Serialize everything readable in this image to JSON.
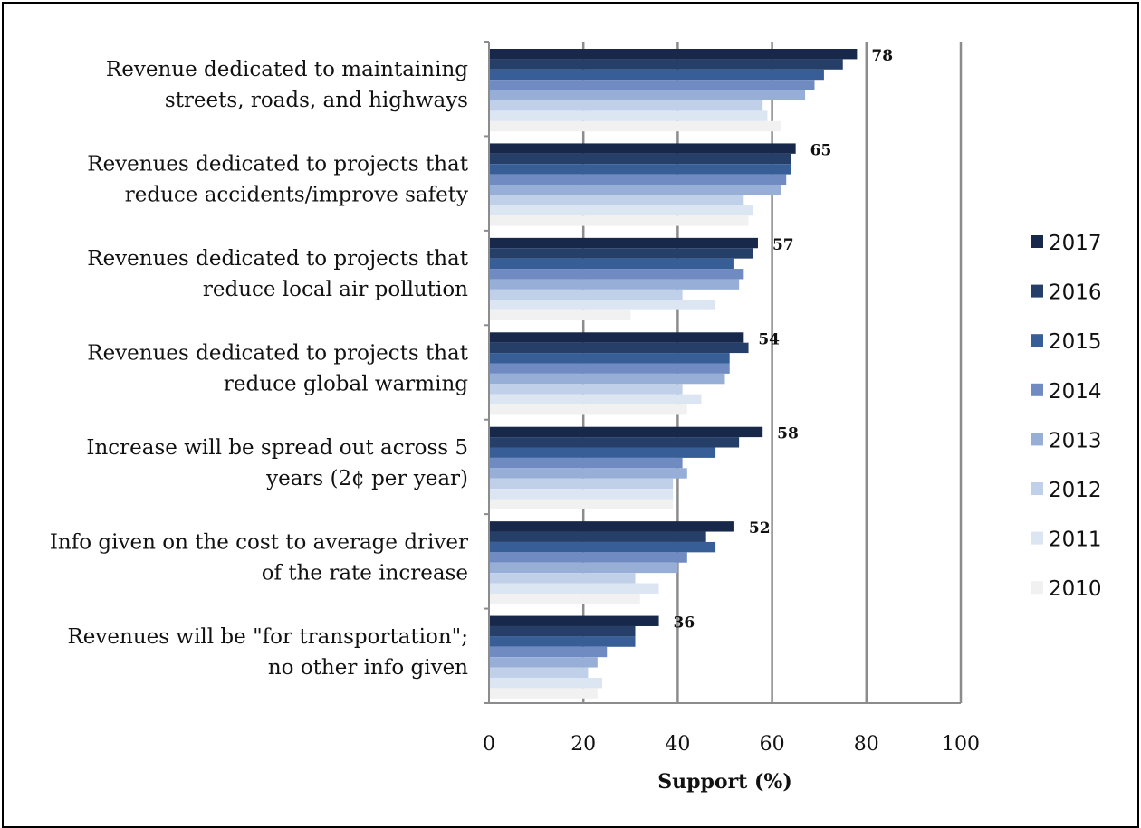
{
  "chart_data": {
    "type": "bar",
    "orientation": "horizontal",
    "xlabel": "Support (%)",
    "xlim": [
      0,
      100
    ],
    "xticks": [
      "0",
      "20",
      "40",
      "60",
      "80",
      "100"
    ],
    "grid": true,
    "legend_position": "right",
    "categories": [
      [
        "Revenue dedicated to maintaining",
        "streets,  roads, and highways"
      ],
      [
        "Revenues dedicated to projects that",
        "reduce accidents/improve safety"
      ],
      [
        "Revenues dedicated to projects that",
        "reduce local air pollution"
      ],
      [
        "Revenues dedicated to projects that",
        "reduce global warming"
      ],
      [
        "Increase will be spread out across 5",
        "years (2¢ per year)"
      ],
      [
        "Info given on the cost to average driver",
        "of the rate increase"
      ],
      [
        "Revenues will be \"for transportation\";",
        "no other info given"
      ]
    ],
    "data_labels": [
      "78",
      "65",
      "57",
      "54",
      "58",
      "52",
      "36"
    ],
    "series": [
      {
        "name": "2017",
        "color": "#17284a",
        "values": [
          78,
          65,
          57,
          54,
          58,
          52,
          36
        ]
      },
      {
        "name": "2016",
        "color": "#263f68",
        "values": [
          75,
          64,
          56,
          55,
          53,
          46,
          31
        ]
      },
      {
        "name": "2015",
        "color": "#375e96",
        "values": [
          71,
          64,
          52,
          51,
          48,
          48,
          31
        ]
      },
      {
        "name": "2014",
        "color": "#6f8bc1",
        "values": [
          69,
          63,
          54,
          51,
          41,
          42,
          25
        ]
      },
      {
        "name": "2013",
        "color": "#97afd6",
        "values": [
          67,
          62,
          53,
          50,
          42,
          40,
          23
        ]
      },
      {
        "name": "2012",
        "color": "#c1d0e9",
        "values": [
          58,
          54,
          41,
          41,
          39,
          31,
          21
        ]
      },
      {
        "name": "2011",
        "color": "#dce5f2",
        "values": [
          59,
          56,
          48,
          45,
          39,
          36,
          24
        ]
      },
      {
        "name": "2010",
        "color": "#f1f1f1",
        "values": [
          62,
          55,
          30,
          42,
          39,
          32,
          23
        ]
      }
    ]
  }
}
